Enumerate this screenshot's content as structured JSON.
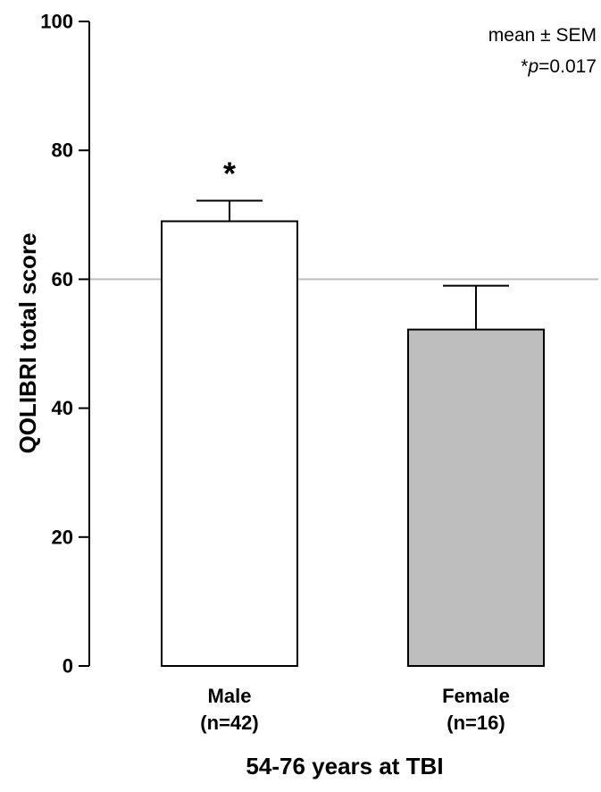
{
  "chart_data": {
    "type": "bar",
    "categories": [
      {
        "name": "Male",
        "n": "(n=42)"
      },
      {
        "name": "Female",
        "n": "(n=16)"
      }
    ],
    "values": [
      69,
      52.2
    ],
    "errors": [
      3.2,
      6.8
    ],
    "bar_colors": [
      "#ffffff",
      "#bebebe"
    ],
    "significance": [
      "*",
      ""
    ],
    "reference_line": 60,
    "reference_line_color": "#bebebe",
    "ylabel": "QOLIBRI total score",
    "xlabel": "54-76 years at TBI",
    "ylim": [
      0,
      100
    ],
    "yticks": [
      0,
      20,
      40,
      60,
      80,
      100
    ],
    "legend_text": "mean ± SEM",
    "p_prefix": "*",
    "p_italic": "p",
    "p_value": "=0.017"
  }
}
